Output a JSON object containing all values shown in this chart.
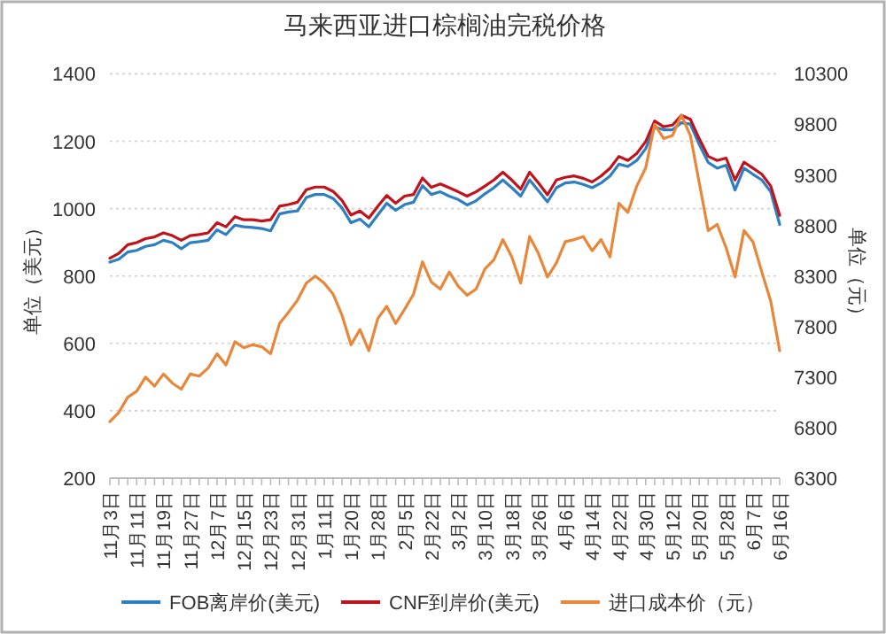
{
  "chart_data": {
    "type": "line",
    "title": "马来西亚进口棕榈油完税价格",
    "ylabel": "单位（美元）",
    "y2label": "单位（元）",
    "categories": [
      "11月3日",
      null,
      null,
      "11月11日",
      null,
      null,
      "11月19日",
      null,
      null,
      "11月27日",
      null,
      null,
      "12月7日",
      null,
      null,
      "12月15日",
      null,
      null,
      "12月23日",
      null,
      null,
      "12月31日",
      null,
      null,
      "1月11日",
      null,
      null,
      "1月20日",
      null,
      null,
      "1月28日",
      null,
      null,
      "2月5日",
      null,
      null,
      "2月22日",
      null,
      null,
      "3月2日",
      null,
      null,
      "3月10日",
      null,
      null,
      "3月18日",
      null,
      null,
      "3月26日",
      null,
      null,
      "4月6日",
      null,
      null,
      "4月14日",
      null,
      null,
      "4月22日",
      null,
      null,
      "4月30日",
      null,
      null,
      "5月12日",
      null,
      null,
      "5月20日",
      null,
      null,
      "5月28日",
      null,
      null,
      "6月7日",
      null,
      null,
      "6月16日"
    ],
    "series": [
      {
        "name": "FOB离岸价(美元)",
        "color": "#2e7fc1",
        "values": [
          841,
          850,
          871,
          876,
          888,
          893,
          906,
          899,
          881,
          899,
          902,
          906,
          937,
          923,
          951,
          946,
          944,
          941,
          934,
          984,
          990,
          993,
          1033,
          1042,
          1042,
          1030,
          1002,
          958,
          969,
          946,
          981,
          1016,
          995,
          1012,
          1019,
          1068,
          1042,
          1050,
          1037,
          1027,
          1011,
          1023,
          1044,
          1062,
          1085,
          1062,
          1037,
          1085,
          1053,
          1020,
          1062,
          1076,
          1079,
          1072,
          1062,
          1076,
          1097,
          1132,
          1125,
          1143,
          1178,
          1242,
          1234,
          1234,
          1255,
          1251,
          1190,
          1137,
          1120,
          1129,
          1055,
          1120,
          1102,
          1085,
          1050,
          953
        ]
      },
      {
        "name": "CNF到岸价(美元)",
        "color": "#c0141c",
        "values": [
          853,
          867,
          893,
          899,
          911,
          916,
          928,
          920,
          906,
          920,
          923,
          928,
          958,
          946,
          976,
          967,
          967,
          963,
          967,
          1007,
          1012,
          1019,
          1056,
          1064,
          1064,
          1051,
          1024,
          981,
          993,
          972,
          1007,
          1039,
          1016,
          1037,
          1042,
          1091,
          1063,
          1073,
          1062,
          1050,
          1037,
          1050,
          1067,
          1085,
          1108,
          1085,
          1058,
          1108,
          1076,
          1041,
          1085,
          1093,
          1097,
          1090,
          1079,
          1097,
          1120,
          1155,
          1143,
          1164,
          1199,
          1260,
          1243,
          1248,
          1277,
          1265,
          1207,
          1155,
          1143,
          1150,
          1085,
          1138,
          1120,
          1102,
          1067,
          980
        ]
      },
      {
        "name": "进口成本价（元）",
        "color": "#e8873a",
        "axis": "y2",
        "values": [
          6860,
          6950,
          7100,
          7160,
          7300,
          7210,
          7330,
          7240,
          7180,
          7330,
          7310,
          7390,
          7530,
          7420,
          7650,
          7590,
          7620,
          7600,
          7530,
          7830,
          7940,
          8060,
          8230,
          8300,
          8230,
          8120,
          7910,
          7620,
          7770,
          7560,
          7880,
          8000,
          7830,
          7970,
          8120,
          8440,
          8240,
          8170,
          8340,
          8200,
          8110,
          8170,
          8370,
          8460,
          8660,
          8490,
          8230,
          8690,
          8520,
          8290,
          8430,
          8640,
          8660,
          8690,
          8550,
          8660,
          8490,
          9020,
          8930,
          9190,
          9370,
          9800,
          9660,
          9690,
          9890,
          9690,
          9220,
          8750,
          8810,
          8580,
          8290,
          8750,
          8640,
          8340,
          8050,
          7560
        ]
      }
    ],
    "ylim": [
      200,
      1400
    ],
    "yticks": [
      200,
      400,
      600,
      800,
      1000,
      1200,
      1400
    ],
    "y2lim": [
      6300,
      10300
    ],
    "y2ticks": [
      6300,
      6800,
      7300,
      7800,
      8300,
      8800,
      9300,
      9800,
      10300
    ],
    "grid": "y",
    "legend": "bottom",
    "marker": "none",
    "line_style": "solid"
  }
}
